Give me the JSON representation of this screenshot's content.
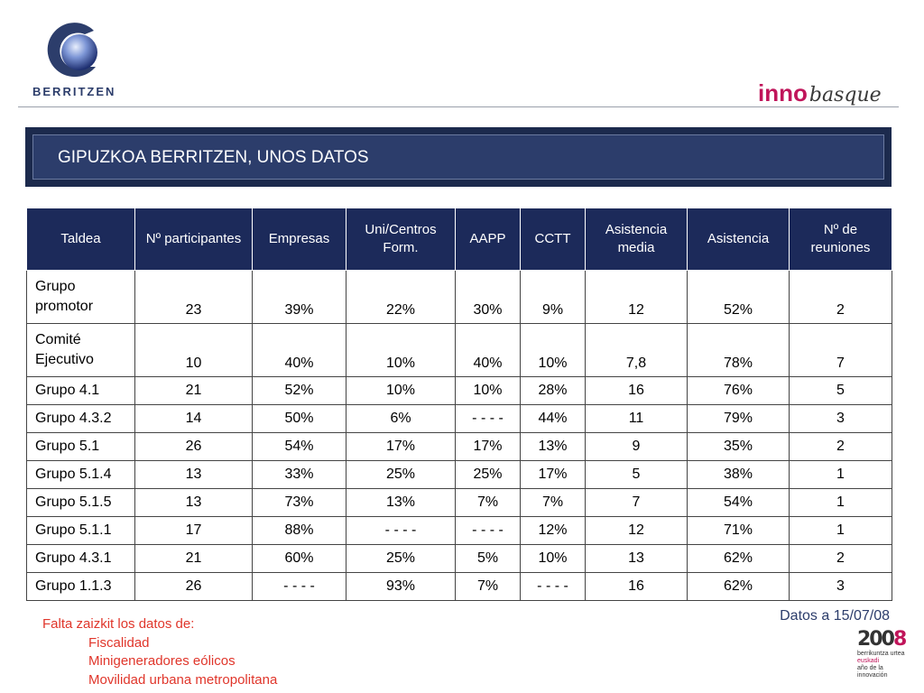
{
  "logos": {
    "left_word": "BERRITZEN",
    "right_inno": "inno",
    "right_basque": "basque",
    "corner_year_a": "200",
    "corner_year_b": "8",
    "corner_line1": "berrikuntza urtea",
    "corner_line2": "euskadi",
    "corner_line3": "año de la innovación"
  },
  "title": "GIPUZKOA BERRITZEN, UNOS DATOS",
  "table": {
    "headers": [
      "Taldea",
      "Nº participantes",
      "Empresas",
      "Uni/Centros Form.",
      "AAPP",
      "CCTT",
      "Asistencia media",
      "Asistencia",
      "Nº de reuniones"
    ],
    "rows": [
      [
        "Grupo promotor",
        "23",
        "39%",
        "22%",
        "30%",
        "9%",
        "12",
        "52%",
        "2"
      ],
      [
        "Comité Ejecutivo",
        "10",
        "40%",
        "10%",
        "40%",
        "10%",
        "7,8",
        "78%",
        "7"
      ],
      [
        "Grupo 4.1",
        "21",
        "52%",
        "10%",
        "10%",
        "28%",
        "16",
        "76%",
        "5"
      ],
      [
        "Grupo 4.3.2",
        "14",
        "50%",
        "6%",
        "- - - -",
        "44%",
        "11",
        "79%",
        "3"
      ],
      [
        "Grupo 5.1",
        "26",
        "54%",
        "17%",
        "17%",
        "13%",
        "9",
        "35%",
        "2"
      ],
      [
        "Grupo 5.1.4",
        "13",
        "33%",
        "25%",
        "25%",
        "17%",
        "5",
        "38%",
        "1"
      ],
      [
        "Grupo 5.1.5",
        "13",
        "73%",
        "13%",
        "7%",
        "7%",
        "7",
        "54%",
        "1"
      ],
      [
        "Grupo 5.1.1",
        "17",
        "88%",
        "- - - -",
        "- - - -",
        "12%",
        "12",
        "71%",
        "1"
      ],
      [
        "Grupo 4.3.1",
        "21",
        "60%",
        "25%",
        "5%",
        "10%",
        "13",
        "62%",
        "2"
      ],
      [
        "Grupo 1.1.3",
        "26",
        "- - - -",
        "93%",
        "7%",
        "- - - -",
        "16",
        "62%",
        "3"
      ]
    ]
  },
  "date_note": "Datos a 15/07/08",
  "missing": {
    "heading": "Falta zaizkit los datos de:",
    "items": [
      "Fiscalidad",
      "Minigeneradores eólicos",
      "Movilidad urbana metropolitana"
    ]
  },
  "colors": {
    "header_navy": "#1c2a5a",
    "banner_navy": "#2c3d6b",
    "note_red": "#e0362b",
    "inno_magenta": "#c0155a"
  }
}
